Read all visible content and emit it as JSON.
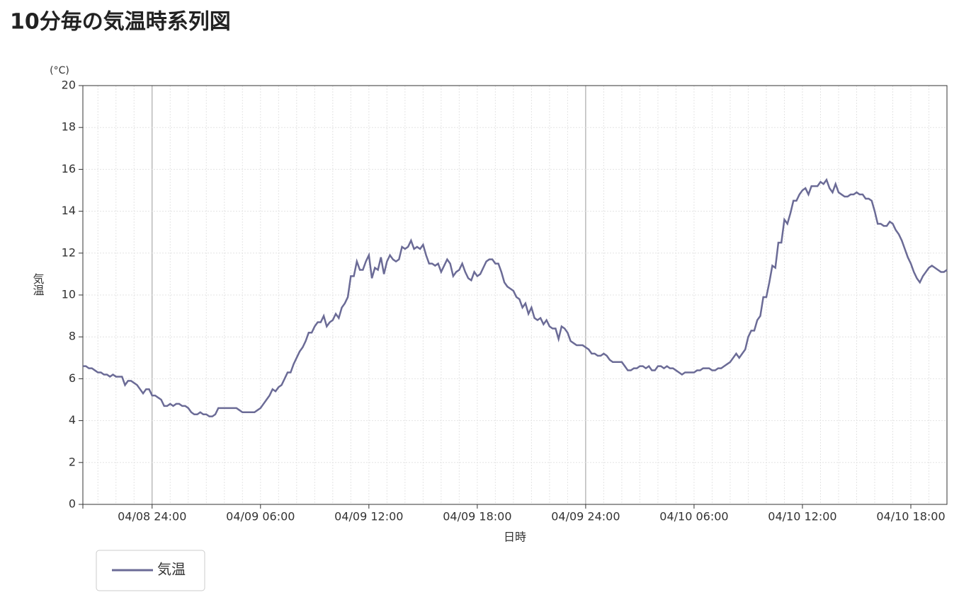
{
  "chart_data": {
    "type": "line",
    "title": "10分毎の気温時系列図",
    "y_unit": "(°C)",
    "y_label": "気温",
    "x_label": "日時",
    "x": [
      "04/08 20:10",
      "04/08 20:20",
      "04/08 20:30",
      "04/08 20:40",
      "04/08 20:50",
      "04/08 21:00",
      "04/08 21:10",
      "04/08 21:20",
      "04/08 21:30",
      "04/08 21:40",
      "04/08 21:50",
      "04/08 22:00",
      "04/08 22:10",
      "04/08 22:20",
      "04/08 22:30",
      "04/08 22:40",
      "04/08 22:50",
      "04/08 23:00",
      "04/08 23:10",
      "04/08 23:20",
      "04/08 23:30",
      "04/08 23:40",
      "04/08 23:50",
      "04/08 24:00",
      "04/09 00:10",
      "04/09 00:20",
      "04/09 00:30",
      "04/09 00:40",
      "04/09 00:50",
      "04/09 01:00",
      "04/09 01:10",
      "04/09 01:20",
      "04/09 01:30",
      "04/09 01:40",
      "04/09 01:50",
      "04/09 02:00",
      "04/09 02:10",
      "04/09 02:20",
      "04/09 02:30",
      "04/09 02:40",
      "04/09 02:50",
      "04/09 03:00",
      "04/09 03:10",
      "04/09 03:20",
      "04/09 03:30",
      "04/09 03:40",
      "04/09 03:50",
      "04/09 04:00",
      "04/09 04:10",
      "04/09 04:20",
      "04/09 04:30",
      "04/09 04:40",
      "04/09 04:50",
      "04/09 05:00",
      "04/09 05:10",
      "04/09 05:20",
      "04/09 05:30",
      "04/09 05:40",
      "04/09 05:50",
      "04/09 06:00",
      "04/09 06:10",
      "04/09 06:20",
      "04/09 06:30",
      "04/09 06:40",
      "04/09 06:50",
      "04/09 07:00",
      "04/09 07:10",
      "04/09 07:20",
      "04/09 07:30",
      "04/09 07:40",
      "04/09 07:50",
      "04/09 08:00",
      "04/09 08:10",
      "04/09 08:20",
      "04/09 08:30",
      "04/09 08:40",
      "04/09 08:50",
      "04/09 09:00",
      "04/09 09:10",
      "04/09 09:20",
      "04/09 09:30",
      "04/09 09:40",
      "04/09 09:50",
      "04/09 10:00",
      "04/09 10:10",
      "04/09 10:20",
      "04/09 10:30",
      "04/09 10:40",
      "04/09 10:50",
      "04/09 11:00",
      "04/09 11:10",
      "04/09 11:20",
      "04/09 11:30",
      "04/09 11:40",
      "04/09 11:50",
      "04/09 12:00",
      "04/09 12:10",
      "04/09 12:20",
      "04/09 12:30",
      "04/09 12:40",
      "04/09 12:50",
      "04/09 13:00",
      "04/09 13:10",
      "04/09 13:20",
      "04/09 13:30",
      "04/09 13:40",
      "04/09 13:50",
      "04/09 14:00",
      "04/09 14:10",
      "04/09 14:20",
      "04/09 14:30",
      "04/09 14:40",
      "04/09 14:50",
      "04/09 15:00",
      "04/09 15:10",
      "04/09 15:20",
      "04/09 15:30",
      "04/09 15:40",
      "04/09 15:50",
      "04/09 16:00",
      "04/09 16:10",
      "04/09 16:20",
      "04/09 16:30",
      "04/09 16:40",
      "04/09 16:50",
      "04/09 17:00",
      "04/09 17:10",
      "04/09 17:20",
      "04/09 17:30",
      "04/09 17:40",
      "04/09 17:50",
      "04/09 18:00",
      "04/09 18:10",
      "04/09 18:20",
      "04/09 18:30",
      "04/09 18:40",
      "04/09 18:50",
      "04/09 19:00",
      "04/09 19:10",
      "04/09 19:20",
      "04/09 19:30",
      "04/09 19:40",
      "04/09 19:50",
      "04/09 20:00",
      "04/09 20:10",
      "04/09 20:20",
      "04/09 20:30",
      "04/09 20:40",
      "04/09 20:50",
      "04/09 21:00",
      "04/09 21:10",
      "04/09 21:20",
      "04/09 21:30",
      "04/09 21:40",
      "04/09 21:50",
      "04/09 22:00",
      "04/09 22:10",
      "04/09 22:20",
      "04/09 22:30",
      "04/09 22:40",
      "04/09 22:50",
      "04/09 23:00",
      "04/09 23:10",
      "04/09 23:20",
      "04/09 23:30",
      "04/09 23:40",
      "04/09 23:50",
      "04/09 24:00",
      "04/10 00:10",
      "04/10 00:20",
      "04/10 00:30",
      "04/10 00:40",
      "04/10 00:50",
      "04/10 01:00",
      "04/10 01:10",
      "04/10 01:20",
      "04/10 01:30",
      "04/10 01:40",
      "04/10 01:50",
      "04/10 02:00",
      "04/10 02:10",
      "04/10 02:20",
      "04/10 02:30",
      "04/10 02:40",
      "04/10 02:50",
      "04/10 03:00",
      "04/10 03:10",
      "04/10 03:20",
      "04/10 03:30",
      "04/10 03:40",
      "04/10 03:50",
      "04/10 04:00",
      "04/10 04:10",
      "04/10 04:20",
      "04/10 04:30",
      "04/10 04:40",
      "04/10 04:50",
      "04/10 05:00",
      "04/10 05:10",
      "04/10 05:20",
      "04/10 05:30",
      "04/10 05:40",
      "04/10 05:50",
      "04/10 06:00",
      "04/10 06:10",
      "04/10 06:20",
      "04/10 06:30",
      "04/10 06:40",
      "04/10 06:50",
      "04/10 07:00",
      "04/10 07:10",
      "04/10 07:20",
      "04/10 07:30",
      "04/10 07:40",
      "04/10 07:50",
      "04/10 08:00",
      "04/10 08:10",
      "04/10 08:20",
      "04/10 08:30",
      "04/10 08:40",
      "04/10 08:50",
      "04/10 09:00",
      "04/10 09:10",
      "04/10 09:20",
      "04/10 09:30",
      "04/10 09:40",
      "04/10 09:50",
      "04/10 10:00",
      "04/10 10:10",
      "04/10 10:20",
      "04/10 10:30",
      "04/10 10:40",
      "04/10 10:50",
      "04/10 11:00",
      "04/10 11:10",
      "04/10 11:20",
      "04/10 11:30",
      "04/10 11:40",
      "04/10 11:50",
      "04/10 12:00",
      "04/10 12:10",
      "04/10 12:20",
      "04/10 12:30",
      "04/10 12:40",
      "04/10 12:50",
      "04/10 13:00",
      "04/10 13:10",
      "04/10 13:20",
      "04/10 13:30",
      "04/10 13:40",
      "04/10 13:50",
      "04/10 14:00",
      "04/10 14:10",
      "04/10 14:20",
      "04/10 14:30",
      "04/10 14:40",
      "04/10 14:50",
      "04/10 15:00",
      "04/10 15:10",
      "04/10 15:20",
      "04/10 15:30",
      "04/10 15:40",
      "04/10 15:50",
      "04/10 16:00",
      "04/10 16:10",
      "04/10 16:20",
      "04/10 16:30",
      "04/10 16:40",
      "04/10 16:50",
      "04/10 17:00",
      "04/10 17:10",
      "04/10 17:20",
      "04/10 17:30",
      "04/10 17:40",
      "04/10 17:50",
      "04/10 18:00",
      "04/10 18:10",
      "04/10 18:20",
      "04/10 18:30",
      "04/10 18:40",
      "04/10 18:50",
      "04/10 19:00",
      "04/10 19:10",
      "04/10 19:20",
      "04/10 19:30",
      "04/10 19:40",
      "04/10 19:50",
      "04/10 20:00"
    ],
    "series": [
      {
        "name": "気温",
        "color": "#6b6b96",
        "values": [
          6.6,
          6.6,
          6.5,
          6.5,
          6.4,
          6.3,
          6.3,
          6.2,
          6.2,
          6.1,
          6.2,
          6.1,
          6.1,
          6.1,
          5.7,
          5.9,
          5.9,
          5.8,
          5.7,
          5.5,
          5.3,
          5.5,
          5.5,
          5.2,
          5.2,
          5.1,
          5.0,
          4.7,
          4.7,
          4.8,
          4.7,
          4.8,
          4.8,
          4.7,
          4.7,
          4.6,
          4.4,
          4.3,
          4.3,
          4.4,
          4.3,
          4.3,
          4.2,
          4.2,
          4.3,
          4.6,
          4.6,
          4.6,
          4.6,
          4.6,
          4.6,
          4.6,
          4.5,
          4.4,
          4.4,
          4.4,
          4.4,
          4.4,
          4.5,
          4.6,
          4.8,
          5.0,
          5.2,
          5.5,
          5.4,
          5.6,
          5.7,
          6.0,
          6.3,
          6.3,
          6.7,
          7.0,
          7.3,
          7.5,
          7.8,
          8.2,
          8.2,
          8.5,
          8.7,
          8.7,
          9.0,
          8.5,
          8.7,
          8.8,
          9.1,
          8.9,
          9.4,
          9.6,
          9.9,
          10.9,
          10.9,
          11.6,
          11.2,
          11.2,
          11.6,
          11.9,
          10.8,
          11.3,
          11.2,
          11.8,
          11.0,
          11.6,
          11.9,
          11.7,
          11.6,
          11.7,
          12.3,
          12.2,
          12.3,
          12.6,
          12.2,
          12.3,
          12.2,
          12.4,
          11.9,
          11.5,
          11.5,
          11.4,
          11.5,
          11.1,
          11.4,
          11.7,
          11.5,
          10.9,
          11.1,
          11.2,
          11.5,
          11.1,
          10.8,
          10.7,
          11.1,
          10.9,
          11.0,
          11.3,
          11.6,
          11.7,
          11.7,
          11.5,
          11.5,
          11.1,
          10.6,
          10.4,
          10.3,
          10.2,
          9.9,
          9.8,
          9.4,
          9.6,
          9.1,
          9.4,
          8.9,
          8.8,
          8.9,
          8.6,
          8.8,
          8.5,
          8.4,
          8.4,
          7.9,
          8.5,
          8.4,
          8.2,
          7.8,
          7.7,
          7.6,
          7.6,
          7.6,
          7.5,
          7.4,
          7.2,
          7.2,
          7.1,
          7.1,
          7.2,
          7.1,
          6.9,
          6.8,
          6.8,
          6.8,
          6.8,
          6.6,
          6.4,
          6.4,
          6.5,
          6.5,
          6.6,
          6.6,
          6.5,
          6.6,
          6.4,
          6.4,
          6.6,
          6.6,
          6.5,
          6.6,
          6.5,
          6.5,
          6.4,
          6.3,
          6.2,
          6.3,
          6.3,
          6.3,
          6.3,
          6.4,
          6.4,
          6.5,
          6.5,
          6.5,
          6.4,
          6.4,
          6.5,
          6.5,
          6.6,
          6.7,
          6.8,
          7.0,
          7.2,
          7.0,
          7.2,
          7.4,
          8.0,
          8.3,
          8.3,
          8.8,
          9.0,
          9.9,
          9.9,
          10.6,
          11.4,
          11.3,
          12.5,
          12.5,
          13.6,
          13.4,
          13.9,
          14.5,
          14.5,
          14.8,
          15.0,
          15.1,
          14.8,
          15.2,
          15.2,
          15.2,
          15.4,
          15.3,
          15.5,
          15.1,
          14.9,
          15.3,
          14.9,
          14.8,
          14.7,
          14.7,
          14.8,
          14.8,
          14.9,
          14.8,
          14.8,
          14.6,
          14.6,
          14.5,
          14.0,
          13.4,
          13.4,
          13.3,
          13.3,
          13.5,
          13.4,
          13.1,
          12.9,
          12.6,
          12.2,
          11.8,
          11.5,
          11.1,
          10.8,
          10.6,
          10.9,
          11.1,
          11.3,
          11.4,
          11.3,
          11.2,
          11.1,
          11.1,
          11.2
        ]
      }
    ],
    "ylim": [
      0,
      20
    ],
    "yticks": [
      0,
      2,
      4,
      6,
      8,
      10,
      12,
      14,
      16,
      18,
      20
    ],
    "xticks": [
      "04/08 24:00",
      "04/09 06:00",
      "04/09 12:00",
      "04/09 18:00",
      "04/09 24:00",
      "04/10 06:00",
      "04/10 12:00",
      "04/10 18:00"
    ],
    "grid": true
  }
}
